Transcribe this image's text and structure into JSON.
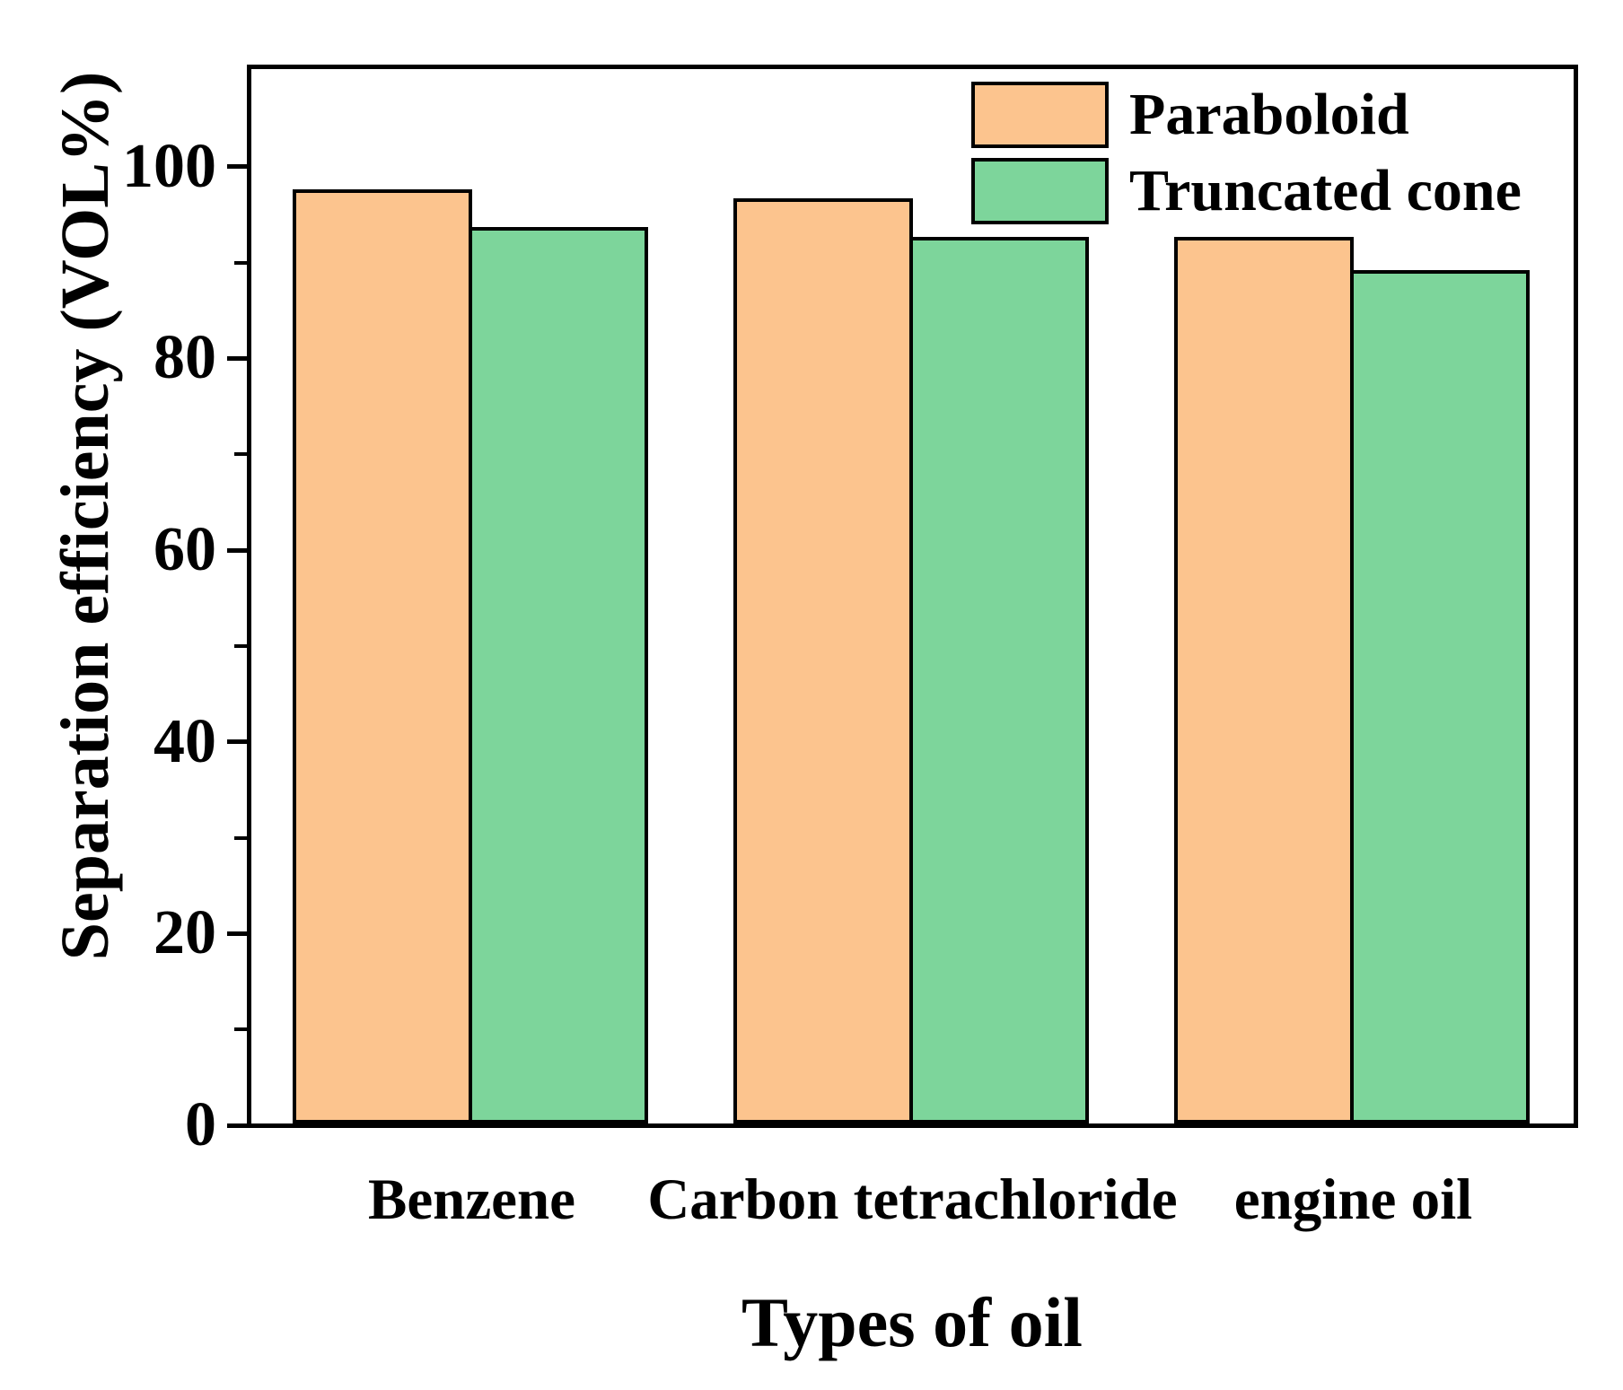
{
  "chart_data": {
    "type": "bar",
    "title": "",
    "xlabel": "Types of oil",
    "ylabel": "Separation efficiency (VOL%)",
    "categories": [
      "Benzene",
      "Carbon tetrachloride",
      "engine oil"
    ],
    "series": [
      {
        "name": "Paraboloid",
        "color": "#FCC48E",
        "values": [
          97.5,
          96.5,
          92.5
        ]
      },
      {
        "name": "Truncated cone",
        "color": "#7DD59B",
        "values": [
          93.5,
          92.5,
          89.0
        ]
      }
    ],
    "ylim": [
      0,
      110
    ],
    "yticks": [
      0,
      20,
      40,
      60,
      80,
      100
    ],
    "minor_yticks": [
      10,
      30,
      50,
      70,
      90
    ],
    "grid": false,
    "legend_position": "top-right",
    "bar_border_color": "#000000",
    "axis_color": "#000000"
  }
}
